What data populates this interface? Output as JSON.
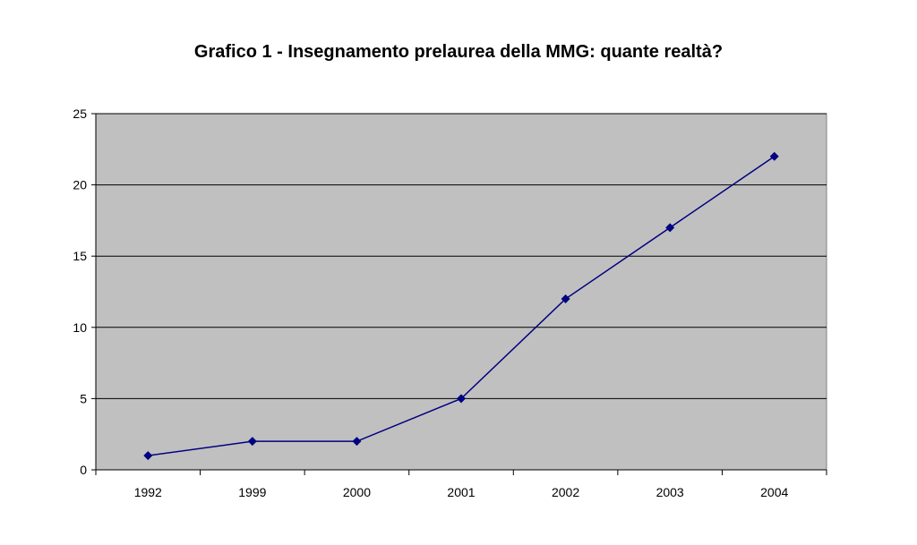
{
  "chart_data": {
    "type": "line",
    "title": "Grafico 1 - Insegnamento prelaurea della MMG: quante realtà?",
    "xlabel": "",
    "ylabel": "",
    "categories": [
      "1992",
      "1999",
      "2000",
      "2001",
      "2002",
      "2003",
      "2004"
    ],
    "series": [
      {
        "values": [
          1,
          2,
          2,
          5,
          12,
          17,
          22
        ]
      }
    ],
    "ylim": [
      0,
      25
    ],
    "yticks": [
      "0",
      "5",
      "10",
      "15",
      "20",
      "25"
    ],
    "grid": "horizontal",
    "legend": "none",
    "colors": {
      "line": "#000080",
      "plot_background": "#c0c0c0",
      "gridline": "#000000"
    }
  }
}
